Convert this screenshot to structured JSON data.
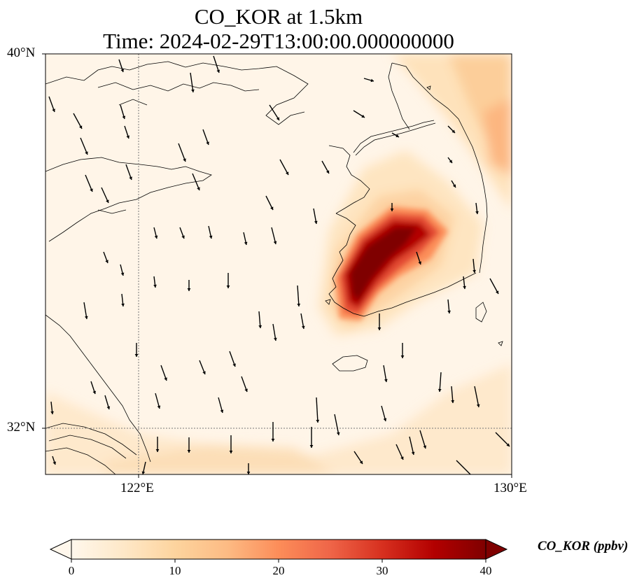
{
  "title": {
    "line1": "CO_KOR at 1.5km",
    "line2": "Time: 2024-02-29T13:00:00.000000000"
  },
  "axes": {
    "lat_ticks": [
      "40°N",
      "32°N"
    ],
    "lon_ticks": [
      "122°E",
      "130°E"
    ],
    "lon_range": [
      120,
      130
    ],
    "lat_range": [
      31,
      40
    ]
  },
  "colorbar": {
    "label": "CO_KOR (ppbv)",
    "ticks": [
      "0",
      "10",
      "20",
      "30",
      "40"
    ],
    "range": [
      0,
      40
    ],
    "colormap": "OrRd",
    "extend": "both",
    "colors": [
      "#fff7ec",
      "#fee8c8",
      "#fdd49e",
      "#fdbb84",
      "#fc8d59",
      "#ef6548",
      "#d7301f",
      "#b30000",
      "#7f0000"
    ]
  },
  "chart_data": {
    "type": "heatmap",
    "variable": "CO_KOR",
    "units": "ppbv",
    "level": "1.5km",
    "time": "2024-02-29T13:00:00.000000000",
    "plume_center": {
      "lon": 126.8,
      "lat": 35.0,
      "max_ppbv": 40
    },
    "gridlines": [
      "122°E",
      "32°N"
    ]
  }
}
